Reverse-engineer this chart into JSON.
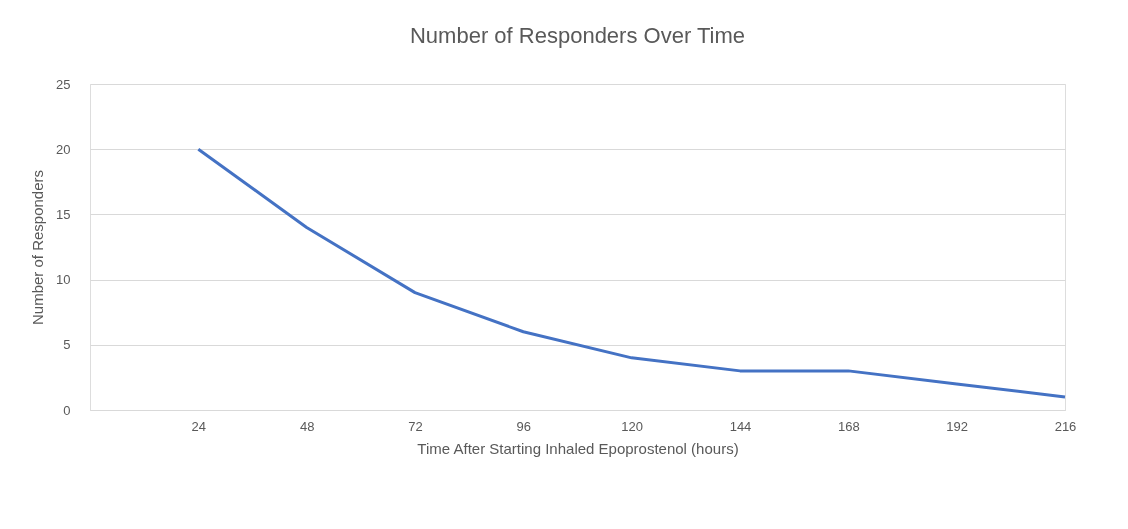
{
  "chart_data": {
    "type": "line",
    "title": "Number of Responders Over Time",
    "xlabel": "Time After Starting Inhaled Epoprostenol (hours)",
    "ylabel": "Number of Responders",
    "categories": [
      null,
      "24",
      "48",
      "72",
      "96",
      "120",
      "144",
      "168",
      "192",
      "216"
    ],
    "values": [
      null,
      20,
      14,
      9,
      6,
      4,
      3,
      3,
      2,
      1
    ],
    "color": "#4472c4",
    "ylim": [
      0,
      25
    ],
    "yticks": [
      0,
      5,
      10,
      15,
      20,
      25
    ],
    "grid": "y",
    "marker": "none",
    "line_style": "solid"
  }
}
